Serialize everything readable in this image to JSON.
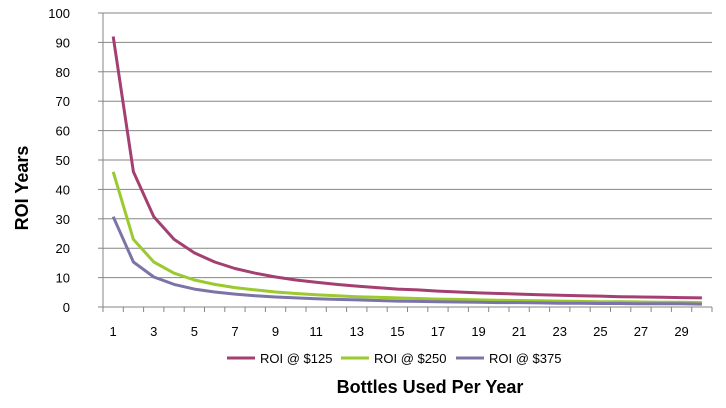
{
  "chart_data": {
    "type": "line",
    "xlabel": "Bottles Used Per Year",
    "ylabel": "ROI Years",
    "x": [
      1,
      2,
      3,
      4,
      5,
      6,
      7,
      8,
      9,
      10,
      11,
      12,
      13,
      14,
      15,
      16,
      17,
      18,
      19,
      20,
      21,
      22,
      23,
      24,
      25,
      26,
      27,
      28,
      29,
      30
    ],
    "x_tick_labels": [
      "1",
      "3",
      "5",
      "7",
      "9",
      "11",
      "13",
      "15",
      "17",
      "19",
      "21",
      "23",
      "25",
      "27",
      "29"
    ],
    "ylim": [
      0,
      100
    ],
    "y_ticks": [
      0,
      10,
      20,
      30,
      40,
      50,
      60,
      70,
      80,
      90,
      100
    ],
    "grid": "horizontal",
    "legend_position": "bottom",
    "series": [
      {
        "name": "ROI @ $125",
        "color": "#a43f72",
        "values": [
          92.0,
          46.0,
          30.7,
          23.0,
          18.4,
          15.3,
          13.1,
          11.5,
          10.2,
          9.2,
          8.4,
          7.7,
          7.1,
          6.6,
          6.1,
          5.8,
          5.4,
          5.1,
          4.8,
          4.6,
          4.4,
          4.2,
          4.0,
          3.8,
          3.7,
          3.5,
          3.4,
          3.3,
          3.2,
          3.1
        ]
      },
      {
        "name": "ROI @ $250",
        "color": "#9bc930",
        "values": [
          46.0,
          23.0,
          15.3,
          11.5,
          9.2,
          7.7,
          6.6,
          5.8,
          5.1,
          4.6,
          4.2,
          3.8,
          3.5,
          3.3,
          3.1,
          2.9,
          2.7,
          2.6,
          2.4,
          2.3,
          2.2,
          2.1,
          2.0,
          1.9,
          1.8,
          1.8,
          1.7,
          1.6,
          1.6,
          1.5
        ]
      },
      {
        "name": "ROI @ $375",
        "color": "#7a74a8",
        "values": [
          30.7,
          15.3,
          10.2,
          7.7,
          6.1,
          5.1,
          4.4,
          3.8,
          3.4,
          3.1,
          2.8,
          2.6,
          2.4,
          2.2,
          2.0,
          1.9,
          1.8,
          1.7,
          1.6,
          1.5,
          1.5,
          1.4,
          1.3,
          1.3,
          1.2,
          1.2,
          1.1,
          1.1,
          1.1,
          1.0
        ]
      }
    ]
  }
}
